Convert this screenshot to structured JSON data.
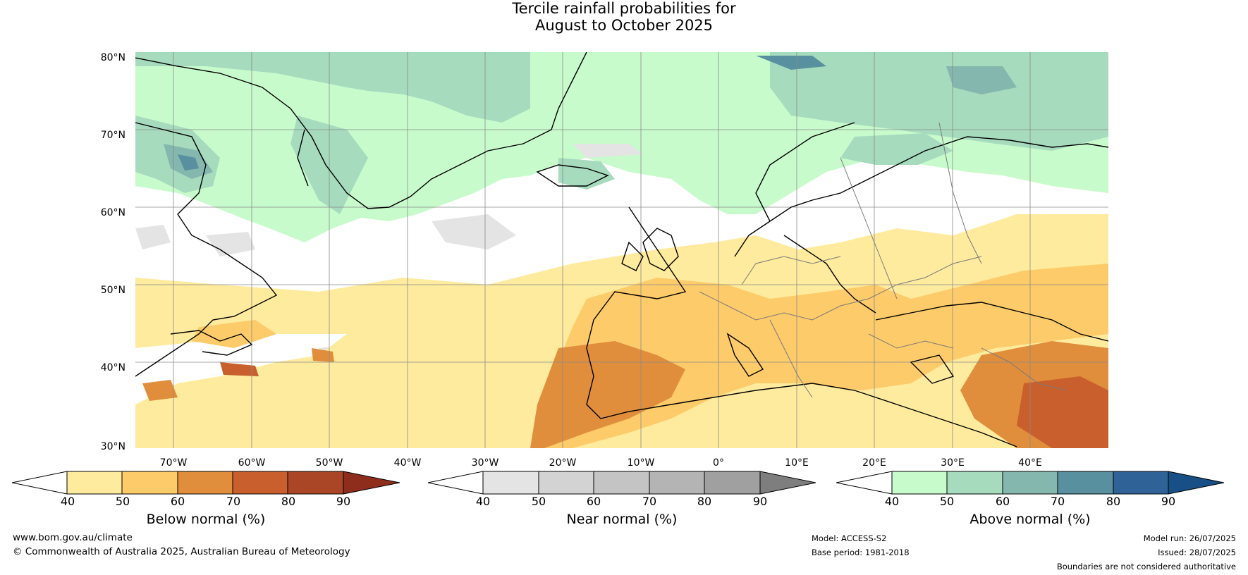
{
  "title": {
    "line1": "Tercile rainfall probabilities for",
    "line2": "August to October 2025"
  },
  "map": {
    "lat_labels": [
      "80°N",
      "70°N",
      "60°N",
      "50°N",
      "40°N",
      "30°N"
    ],
    "lon_labels": [
      "70°W",
      "60°W",
      "50°W",
      "40°W",
      "30°W",
      "20°W",
      "10°W",
      "0°",
      "10°E",
      "20°E",
      "30°E",
      "40°E"
    ]
  },
  "colorbars": [
    {
      "label": "Below normal (%)",
      "ticks": [
        "40",
        "50",
        "60",
        "70",
        "80",
        "90"
      ],
      "colors": [
        "#ffffff",
        "#feeb9e",
        "#fdcb69",
        "#e08e3c",
        "#c95f2c",
        "#aa4526",
        "#8f2d1d"
      ]
    },
    {
      "label": "Near normal (%)",
      "ticks": [
        "40",
        "50",
        "60",
        "70",
        "80",
        "90"
      ],
      "colors": [
        "#ffffff",
        "#e4e4e4",
        "#d3d3d3",
        "#c4c4c4",
        "#b4b4b4",
        "#a0a0a0",
        "#7e7e7e"
      ]
    },
    {
      "label": "Above normal (%)",
      "ticks": [
        "40",
        "50",
        "60",
        "70",
        "80",
        "90"
      ],
      "colors": [
        "#ffffff",
        "#c8fbcc",
        "#a6dbbe",
        "#84b7ad",
        "#5890a0",
        "#2f6398",
        "#174f86"
      ]
    }
  ],
  "footer": {
    "site": "www.bom.gov.au/climate",
    "copyright": "© Commonwealth of Australia 2025, Australian Bureau of Meteorology",
    "model": "Model: ACCESS-S2",
    "base_period": "Base period: 1981-2018",
    "model_run": "Model run: 26/07/2025",
    "issued": "Issued: 28/07/2025",
    "disclaimer": "Boundaries are not considered authoritative"
  }
}
